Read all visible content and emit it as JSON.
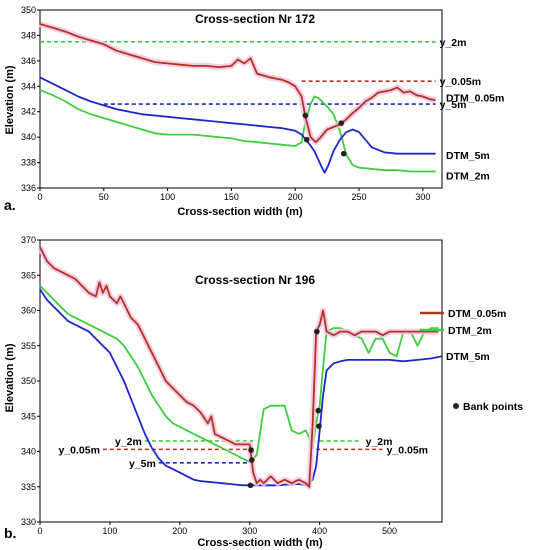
{
  "colors": {
    "dtm005": "#b5341c",
    "dtm2": "#3ecf3e",
    "dtm5": "#1c28c8",
    "halo": "#f4c4e6",
    "ref_y2": "#3ecf3e",
    "ref_y005": "#b5341c",
    "ref_y5": "#1c28c8",
    "bank": "#222222"
  },
  "chart_data": [
    {
      "type": "line",
      "panel_label": "a.",
      "title": "Cross-section Nr 172",
      "xlabel": "Cross-section width (m)",
      "ylabel": "Elevation (m)",
      "xlim": [
        0,
        315
      ],
      "ylim": [
        336,
        350
      ],
      "xticks": [
        0,
        50,
        100,
        150,
        200,
        250,
        300
      ],
      "yticks": [
        336,
        338,
        340,
        342,
        344,
        346,
        348,
        350
      ],
      "series": [
        {
          "key": "dtm005",
          "name": "DTM_0.05m",
          "x": [
            0,
            10,
            20,
            30,
            40,
            50,
            60,
            70,
            80,
            90,
            100,
            110,
            120,
            130,
            140,
            150,
            155,
            160,
            165,
            170,
            180,
            190,
            195,
            200,
            205,
            208,
            212,
            216,
            220,
            225,
            230,
            235,
            240,
            245,
            250,
            255,
            260,
            265,
            270,
            275,
            280,
            285,
            290,
            295,
            300,
            305,
            310
          ],
          "y": [
            348.9,
            348.6,
            348.3,
            347.9,
            347.6,
            347.3,
            346.8,
            346.5,
            346.2,
            345.9,
            345.8,
            345.7,
            345.6,
            345.6,
            345.5,
            345.6,
            346.1,
            345.8,
            346.2,
            345.0,
            344.7,
            344.5,
            344.3,
            344.0,
            343.2,
            341.6,
            340.0,
            339.6,
            340.0,
            340.6,
            340.8,
            341.0,
            341.4,
            341.9,
            342.3,
            342.8,
            343.1,
            343.5,
            343.6,
            343.7,
            343.9,
            343.5,
            343.6,
            343.3,
            343.2,
            343.0,
            342.9
          ]
        },
        {
          "key": "dtm2",
          "name": "DTM_2m",
          "x": [
            0,
            10,
            20,
            30,
            40,
            50,
            60,
            70,
            80,
            90,
            100,
            110,
            120,
            130,
            140,
            150,
            160,
            170,
            180,
            190,
            200,
            205,
            208,
            212,
            215,
            218,
            222,
            226,
            230,
            235,
            240,
            245,
            250,
            260,
            270,
            280,
            290,
            300,
            310
          ],
          "y": [
            343.7,
            343.3,
            342.8,
            342.2,
            341.8,
            341.5,
            341.2,
            340.9,
            340.6,
            340.3,
            340.2,
            340.2,
            340.2,
            340.1,
            340.0,
            339.9,
            339.7,
            339.6,
            339.5,
            339.4,
            339.3,
            339.6,
            341.2,
            342.6,
            343.2,
            343.1,
            342.7,
            342.3,
            341.8,
            340.5,
            338.6,
            337.8,
            337.6,
            337.5,
            337.4,
            337.4,
            337.3,
            337.3,
            337.3
          ]
        },
        {
          "key": "dtm5",
          "name": "DTM_5m",
          "x": [
            0,
            10,
            20,
            30,
            40,
            50,
            60,
            70,
            80,
            90,
            100,
            110,
            120,
            130,
            140,
            150,
            160,
            170,
            180,
            190,
            200,
            205,
            210,
            215,
            220,
            223,
            226,
            230,
            235,
            240,
            245,
            250,
            255,
            260,
            270,
            280,
            290,
            300,
            310
          ],
          "y": [
            344.7,
            344.2,
            343.7,
            343.2,
            342.8,
            342.5,
            342.2,
            342.0,
            341.8,
            341.7,
            341.6,
            341.5,
            341.4,
            341.3,
            341.2,
            341.1,
            341.0,
            340.9,
            340.8,
            340.7,
            340.5,
            340.2,
            339.6,
            338.9,
            337.8,
            337.2,
            337.8,
            338.9,
            339.8,
            340.4,
            340.6,
            340.4,
            339.8,
            339.2,
            338.8,
            338.7,
            338.7,
            338.7,
            338.7
          ]
        }
      ],
      "reference_lines": [
        {
          "key": "ref_y2",
          "label": "y_2m",
          "y": 347.5,
          "x": [
            0,
            310
          ]
        },
        {
          "key": "ref_y005",
          "label": "y_0.05m",
          "y": 344.4,
          "x": [
            205,
            310
          ]
        },
        {
          "key": "ref_y5",
          "label": "y_5m",
          "y": 342.6,
          "x": [
            50,
            310
          ]
        }
      ],
      "bank_points": [
        {
          "x": 208,
          "y": 341.7
        },
        {
          "x": 209,
          "y": 339.8
        },
        {
          "x": 236,
          "y": 341.1
        },
        {
          "x": 238,
          "y": 338.7
        }
      ],
      "legend_labels": [
        {
          "key": "dtm005",
          "text": "DTM_0.05m",
          "y": 343.1
        },
        {
          "key": "dtm5",
          "text": "DTM_5m",
          "y": 338.6
        },
        {
          "key": "dtm2",
          "text": "DTM_2m",
          "y": 337.0
        }
      ],
      "grid": false
    },
    {
      "type": "line",
      "panel_label": "b.",
      "title": "Cross-section Nr 196",
      "xlabel": "Cross-section width (m)",
      "ylabel": "Elevation (m)",
      "xlim": [
        0,
        575
      ],
      "ylim": [
        330,
        370
      ],
      "xticks": [
        0,
        100,
        200,
        300,
        400,
        500
      ],
      "yticks": [
        330,
        335,
        340,
        345,
        350,
        355,
        360,
        365,
        370
      ],
      "series": [
        {
          "key": "dtm005",
          "name": "DTM_0.05m",
          "x": [
            0,
            10,
            20,
            30,
            40,
            50,
            60,
            70,
            80,
            85,
            90,
            95,
            100,
            110,
            115,
            120,
            130,
            140,
            150,
            160,
            170,
            180,
            190,
            200,
            210,
            220,
            230,
            240,
            245,
            250,
            260,
            270,
            280,
            290,
            300,
            305,
            310,
            315,
            320,
            330,
            340,
            350,
            360,
            370,
            380,
            385,
            390,
            395,
            400,
            405,
            410,
            420,
            430,
            440,
            450,
            460,
            470,
            480,
            490,
            500,
            510,
            520,
            530,
            540,
            550,
            560,
            570
          ],
          "y": [
            369.0,
            367.0,
            366.0,
            365.5,
            365.0,
            364.5,
            363.5,
            362.5,
            362.0,
            364.0,
            362.5,
            363.5,
            362.0,
            361.0,
            362.0,
            361.0,
            359.0,
            358.0,
            356.0,
            354.0,
            352.0,
            350.0,
            349.0,
            348.0,
            347.0,
            346.5,
            345.5,
            344.0,
            345.0,
            342.5,
            342.0,
            341.5,
            341.0,
            341.0,
            341.0,
            337.0,
            335.5,
            336.0,
            335.5,
            336.5,
            335.5,
            336.0,
            335.5,
            336.0,
            335.5,
            335.0,
            344.0,
            357.0,
            358.0,
            360.0,
            357.0,
            356.5,
            357.0,
            357.0,
            356.5,
            357.0,
            357.0,
            357.0,
            356.5,
            357.0,
            357.0,
            357.0,
            357.0,
            357.0,
            357.0,
            357.0,
            357.0
          ]
        },
        {
          "key": "dtm2",
          "name": "DTM_2m",
          "x": [
            0,
            10,
            20,
            30,
            40,
            50,
            60,
            70,
            80,
            90,
            100,
            110,
            120,
            130,
            140,
            150,
            160,
            170,
            180,
            190,
            200,
            210,
            220,
            230,
            240,
            250,
            260,
            270,
            280,
            290,
            300,
            305,
            310,
            320,
            330,
            340,
            350,
            360,
            370,
            380,
            385,
            390,
            395,
            400,
            405,
            410,
            420,
            430,
            440,
            450,
            460,
            470,
            480,
            490,
            500,
            510,
            520,
            530,
            540,
            550,
            560,
            570
          ],
          "y": [
            363.5,
            362.5,
            361.5,
            360.5,
            359.5,
            359.0,
            358.5,
            358.0,
            357.5,
            357.0,
            356.5,
            356.0,
            355.0,
            353.5,
            352.0,
            350.0,
            348.0,
            346.5,
            345.0,
            344.0,
            343.5,
            343.0,
            342.5,
            342.0,
            341.5,
            341.0,
            340.5,
            340.0,
            339.5,
            339.0,
            338.5,
            339.0,
            339.5,
            346.0,
            346.5,
            346.5,
            346.5,
            343.0,
            342.5,
            343.0,
            342.0,
            340.5,
            344.0,
            346.5,
            352.0,
            357.0,
            357.5,
            357.5,
            357.0,
            356.5,
            356.0,
            354.0,
            356.0,
            356.0,
            354.0,
            353.5,
            357.0,
            357.0,
            355.0,
            357.0,
            357.5,
            357.5
          ]
        },
        {
          "key": "dtm5",
          "name": "DTM_5m",
          "x": [
            0,
            10,
            20,
            30,
            40,
            50,
            60,
            70,
            80,
            90,
            100,
            110,
            120,
            130,
            140,
            150,
            160,
            170,
            180,
            190,
            200,
            210,
            220,
            230,
            240,
            250,
            260,
            270,
            280,
            290,
            300,
            310,
            320,
            330,
            340,
            350,
            360,
            370,
            380,
            385,
            390,
            395,
            400,
            405,
            410,
            420,
            430,
            440,
            460,
            480,
            500,
            520,
            540,
            560,
            575
          ],
          "y": [
            363.0,
            361.5,
            360.5,
            359.5,
            358.5,
            358.0,
            357.5,
            357.0,
            356.0,
            355.0,
            354.0,
            352.0,
            350.0,
            347.5,
            345.0,
            342.5,
            340.5,
            339.0,
            338.0,
            337.5,
            337.0,
            336.5,
            336.0,
            335.8,
            335.7,
            335.6,
            335.5,
            335.4,
            335.3,
            335.2,
            335.2,
            335.2,
            335.2,
            335.2,
            335.2,
            335.3,
            335.3,
            335.4,
            335.2,
            335.5,
            336.0,
            338.0,
            343.0,
            348.0,
            351.5,
            352.5,
            352.8,
            353.0,
            353.0,
            353.0,
            353.0,
            352.8,
            353.0,
            353.2,
            353.5
          ]
        }
      ],
      "reference_lines": [
        {
          "key": "ref_y2",
          "label": "y_2m",
          "y": 341.5,
          "x": [
            150,
            305
          ],
          "label_side": "left"
        },
        {
          "key": "ref_y005",
          "label": "y_0.05m",
          "y": 340.3,
          "x": [
            90,
            305
          ],
          "label_side": "left"
        },
        {
          "key": "ref_y5",
          "label": "y_5m",
          "y": 338.4,
          "x": [
            170,
            305
          ],
          "label_side": "left"
        },
        {
          "key": "ref_y2",
          "label": "y_2m",
          "y": 341.5,
          "x": [
            400,
            460
          ],
          "label_side": "right"
        },
        {
          "key": "ref_y005",
          "label": "y_0.05m",
          "y": 340.3,
          "x": [
            395,
            490
          ],
          "label_side": "right"
        }
      ],
      "bank_points": [
        {
          "x": 302,
          "y": 340.2
        },
        {
          "x": 303,
          "y": 338.8
        },
        {
          "x": 301,
          "y": 335.2
        },
        {
          "x": 396,
          "y": 357.0
        },
        {
          "x": 398,
          "y": 345.8
        },
        {
          "x": 399,
          "y": 343.6
        }
      ],
      "legend": [
        {
          "key": "dtm005",
          "text": "DTM_0.05m",
          "kind": "line"
        },
        {
          "key": "dtm2",
          "text": "DTM_2m",
          "kind": "line"
        },
        {
          "key": "dtm5",
          "text": "DTM_5m",
          "kind": "label"
        },
        {
          "key": "bank",
          "text": "Bank points",
          "kind": "point"
        }
      ],
      "grid": false
    }
  ]
}
